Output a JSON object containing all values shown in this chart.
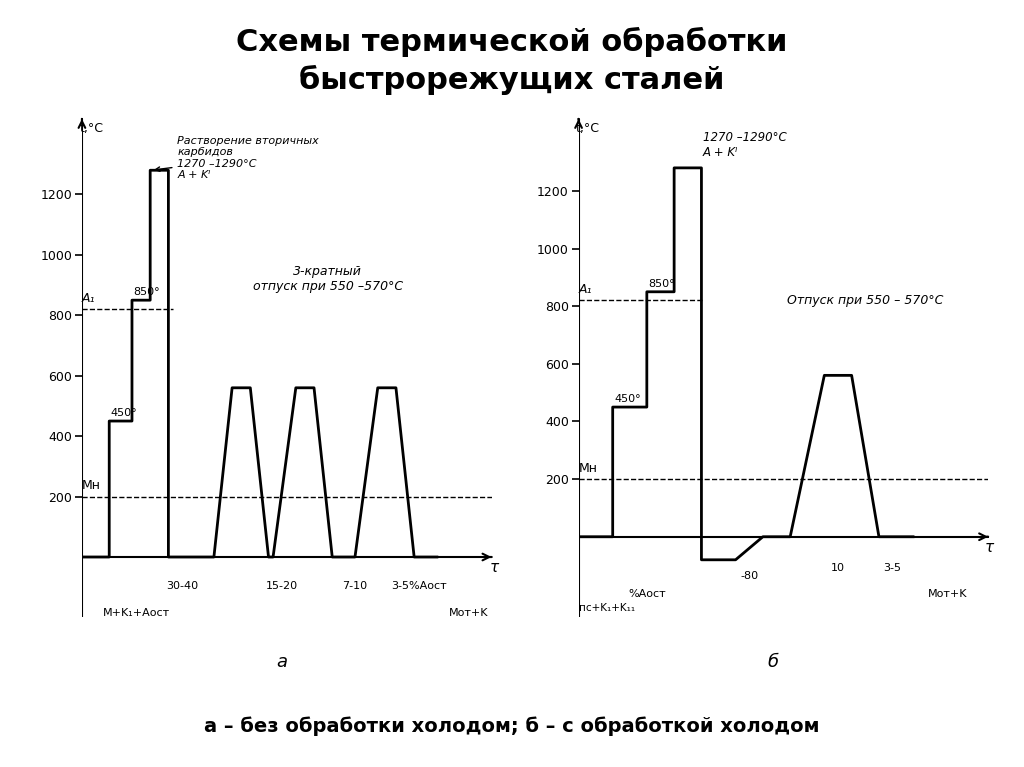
{
  "title_line1": "Схемы термической обработки",
  "title_line2": "быстрорежущих сталей",
  "subtitle": "а – без обработки холодом; б – с обработкой холодом",
  "bg": "#ffffff",
  "lc": "#000000",
  "lw": 2.0,
  "yticks": [
    200,
    400,
    600,
    800,
    1000,
    1200
  ],
  "A1": 820,
  "Mn": 200,
  "T_quench": 1280,
  "T_pre1": 450,
  "T_pre2": 850,
  "T_temper": 560,
  "T_cold": -80,
  "chart_a_profile_x": [
    0,
    0.3,
    0.3,
    0.55,
    0.55,
    0.75,
    0.75,
    0.95,
    0.95,
    1.45,
    1.65,
    1.85,
    2.05,
    2.1,
    2.35,
    2.55,
    2.75,
    2.95,
    3.0,
    3.25,
    3.45,
    3.65,
    3.85,
    3.9
  ],
  "chart_a_profile_y": [
    0,
    0,
    450,
    450,
    850,
    850,
    1280,
    1280,
    0,
    0,
    560,
    560,
    0,
    0,
    560,
    560,
    0,
    0,
    0,
    560,
    560,
    0,
    0,
    0
  ],
  "chart_b_profile_x": [
    0,
    0.25,
    0.25,
    0.5,
    0.5,
    0.7,
    0.7,
    0.9,
    0.9,
    1.15,
    1.35,
    1.55,
    1.8,
    2.0,
    2.2,
    2.4,
    2.45
  ],
  "chart_b_profile_y": [
    0,
    0,
    450,
    450,
    850,
    850,
    1280,
    1280,
    -80,
    -80,
    0,
    0,
    560,
    560,
    0,
    0,
    0
  ]
}
